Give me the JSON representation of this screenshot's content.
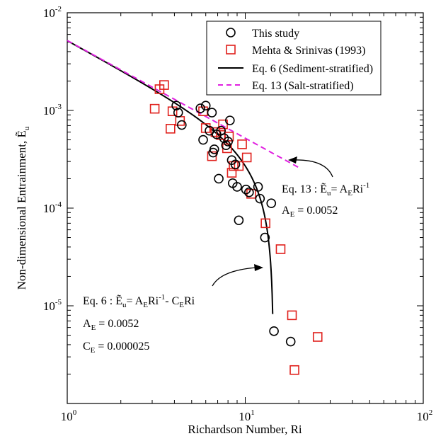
{
  "chart_data": {
    "type": "scatter",
    "title": "",
    "xlabel": "Richardson Number, Ri",
    "ylabel": "Non-dimensional Entrainment, Ẽ",
    "ylabel_sub": "u",
    "x_scale": "log",
    "y_scale": "log",
    "xlim": [
      1,
      100
    ],
    "ylim": [
      1e-06,
      0.01
    ],
    "x_ticks": [
      {
        "value": 1,
        "base": "10",
        "exp": "0"
      },
      {
        "value": 10,
        "base": "10",
        "exp": "1"
      },
      {
        "value": 100,
        "base": "10",
        "exp": "2"
      }
    ],
    "y_ticks": [
      {
        "value": 1e-05,
        "base": "10",
        "exp": "-5"
      },
      {
        "value": 0.0001,
        "base": "10",
        "exp": "-4"
      },
      {
        "value": 0.001,
        "base": "10",
        "exp": "-3"
      },
      {
        "value": 0.01,
        "base": "10",
        "exp": "-2"
      }
    ],
    "grid": false,
    "legend_position": "top-right",
    "colors": {
      "this_study": "#000000",
      "mehta": "#e0201c",
      "eq6": "#000000",
      "eq13": "#e020e0"
    },
    "series": [
      {
        "name": "This study",
        "kind": "scatter",
        "marker": "circle",
        "points": [
          [
            4.1,
            0.00112
          ],
          [
            4.2,
            0.00095
          ],
          [
            4.4,
            0.00071
          ],
          [
            5.6,
            0.00105
          ],
          [
            5.8,
            0.0005
          ],
          [
            6.0,
            0.00112
          ],
          [
            6.3,
            0.00062
          ],
          [
            6.5,
            0.00095
          ],
          [
            6.6,
            0.00037
          ],
          [
            6.7,
            0.0004
          ],
          [
            6.9,
            0.00057
          ],
          [
            7.1,
            0.0002
          ],
          [
            7.3,
            0.00062
          ],
          [
            7.6,
            0.00052
          ],
          [
            7.8,
            0.00044
          ],
          [
            8.0,
            0.00048
          ],
          [
            8.2,
            0.00079
          ],
          [
            8.4,
            0.00031
          ],
          [
            8.5,
            0.00018
          ],
          [
            8.8,
            0.00028
          ],
          [
            9.0,
            0.000165
          ],
          [
            9.2,
            7.5e-05
          ],
          [
            10.1,
            0.000155
          ],
          [
            10.5,
            0.000145
          ],
          [
            11.8,
            0.000165
          ],
          [
            12.1,
            0.000125
          ],
          [
            12.9,
            5e-05
          ],
          [
            14.0,
            0.000112
          ],
          [
            14.5,
            5.5e-06
          ],
          [
            18.0,
            4.3e-06
          ]
        ]
      },
      {
        "name": "Mehta & Srinivas (1993)",
        "kind": "scatter",
        "marker": "square",
        "points": [
          [
            3.1,
            0.00104
          ],
          [
            3.3,
            0.00165
          ],
          [
            3.5,
            0.00182
          ],
          [
            3.8,
            0.00065
          ],
          [
            3.9,
            0.00098
          ],
          [
            4.3,
            0.00078
          ],
          [
            5.8,
            0.00098
          ],
          [
            6.0,
            0.00066
          ],
          [
            6.5,
            0.00034
          ],
          [
            6.8,
            0.0006
          ],
          [
            7.3,
            0.00056
          ],
          [
            7.5,
            0.00072
          ],
          [
            7.9,
            0.00041
          ],
          [
            8.1,
            0.00054
          ],
          [
            8.4,
            0.00023
          ],
          [
            8.6,
            0.00027
          ],
          [
            9.2,
            0.00027
          ],
          [
            9.6,
            0.00045
          ],
          [
            10.2,
            0.00033
          ],
          [
            10.8,
            0.00014
          ],
          [
            13.0,
            7e-05
          ],
          [
            15.8,
            3.8e-05
          ],
          [
            18.3,
            8e-06
          ],
          [
            18.9,
            2.2e-06
          ],
          [
            25.5,
            4.8e-06
          ]
        ]
      },
      {
        "name": "Eq. 6 (Sediment-stratified)",
        "kind": "line",
        "style": "solid",
        "A_E": 0.0052,
        "C_E": 2.5e-05
      },
      {
        "name": "Eq. 13 (Salt-stratified)",
        "kind": "line",
        "style": "dashed",
        "A_E": 0.0052
      }
    ],
    "annotations": {
      "eq13": {
        "prefix": "Eq. 13 : ",
        "lhs": "Ẽ",
        "lhs_sub": "u",
        "eq": "= A",
        "sub_E": "E",
        "ri": "Ri",
        "exp": "-1",
        "ae_label": "A",
        "ae_value": " = 0.0052"
      },
      "eq6": {
        "prefix": "Eq. 6 : ",
        "lhs": "Ẽ",
        "lhs_sub": "u",
        "eq": "= A",
        "sub_E": "E",
        "ri": "Ri",
        "exp": "-1",
        "minus": "- C",
        "ri2": "Ri",
        "ae_label": "A",
        "ae_value": " = 0.0052",
        "ce_label": "C",
        "ce_value": " = 0.000025"
      }
    }
  }
}
